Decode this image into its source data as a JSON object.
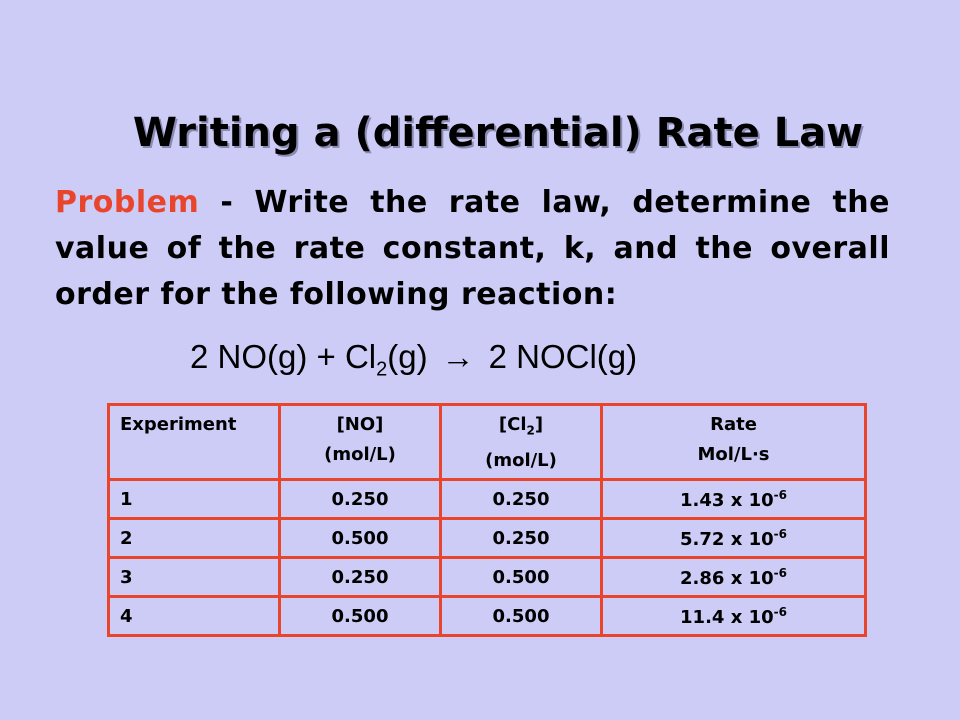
{
  "title": "Writing a (differential) Rate Law",
  "problem": {
    "label": "Problem",
    "text": "- Write the rate law, determine the value of the rate constant, k, and the overall order for the following reaction:"
  },
  "equation": {
    "left": "2 NO(g) + Cl",
    "sub": "2",
    "after_sub": "(g)",
    "arrow": "→",
    "right": "2 NOCl(g)"
  },
  "table": {
    "header": {
      "experiment": "Experiment",
      "no": [
        "[NO]",
        "(mol/L)"
      ],
      "cl2": {
        "before": "[Cl",
        "sub": "2",
        "after": "]",
        "unit": "(mol/L)"
      },
      "rate": [
        "Rate",
        "Mol/L·s"
      ]
    },
    "rows": [
      [
        "1",
        "0.250",
        "0.250",
        {
          "base": "1.43 x 10",
          "exp": "-6"
        }
      ],
      [
        "2",
        "0.500",
        "0.250",
        {
          "base": "5.72 x 10",
          "exp": "-6"
        }
      ],
      [
        "3",
        "0.250",
        "0.500",
        {
          "base": "2.86 x 10",
          "exp": "-6"
        }
      ],
      [
        "4",
        "0.500",
        "0.500",
        {
          "base": "11.4 x 10",
          "exp": "-6"
        }
      ]
    ]
  }
}
